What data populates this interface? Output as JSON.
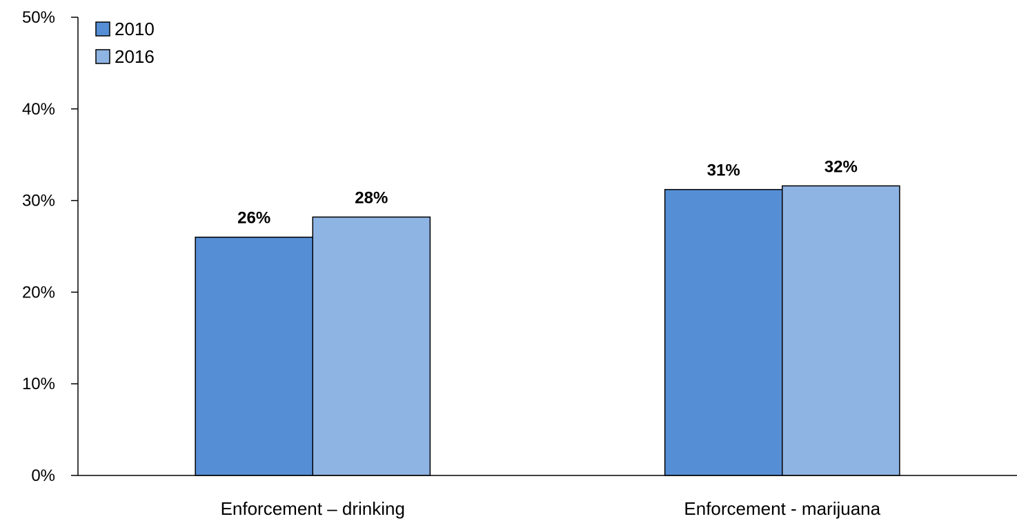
{
  "chart_data": {
    "type": "bar",
    "categories": [
      "Enforcement – drinking",
      "Enforcement - marijuana"
    ],
    "series": [
      {
        "name": "2010",
        "values": [
          26,
          31.2
        ],
        "labels": [
          "26%",
          "31%"
        ],
        "color": "#558ED5"
      },
      {
        "name": "2016",
        "values": [
          28.2,
          31.6
        ],
        "labels": [
          "28%",
          "32%"
        ],
        "color": "#8EB4E3"
      }
    ],
    "yticks": [
      "0%",
      "10%",
      "20%",
      "30%",
      "40%",
      "50%"
    ],
    "ylim": [
      0,
      50
    ],
    "grid": false,
    "legend_position": "top-left",
    "title": "",
    "xlabel": "",
    "ylabel": ""
  }
}
